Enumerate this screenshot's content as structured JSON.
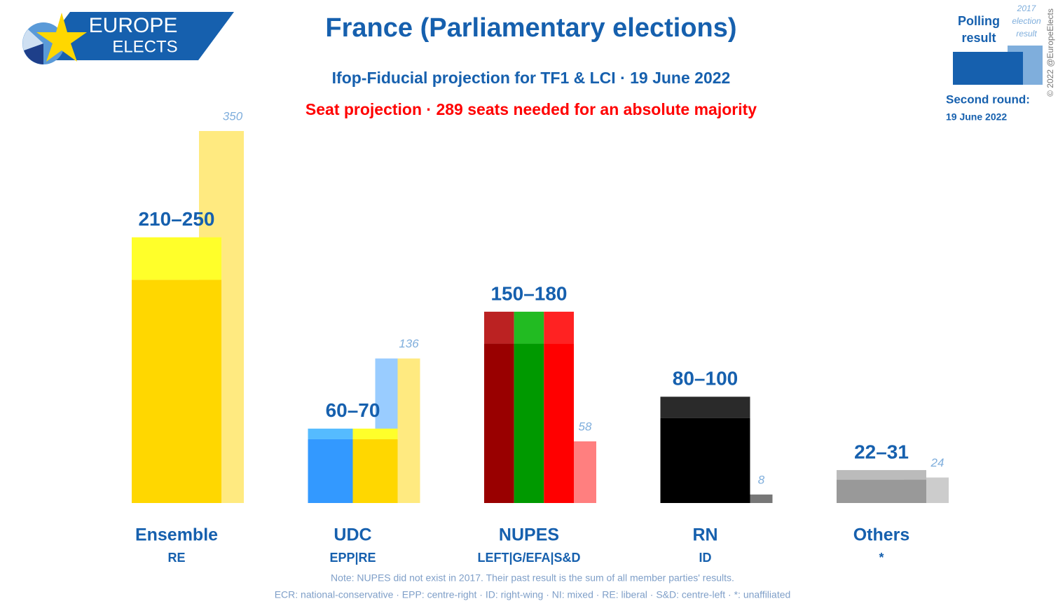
{
  "logo": {
    "line1": "EUROPE",
    "line2": "ELECTS"
  },
  "copyright": "© 2022 @EuropeElects",
  "round": {
    "label": "Second round:",
    "date": "19 June 2022"
  },
  "notes": [
    "Note: NUPES did not exist in 2017. Their past result is the sum of all member parties' results.",
    "ECR: national-conservative · EPP: centre-right · ID: right-wing · NI: mixed · RE: liberal · S&D: centre-left · *: unaffiliated"
  ],
  "chart_data": {
    "type": "range_bar",
    "title": "France (Parliamentary elections)",
    "subtitle": "Ifop-Fiducial projection for TF1 & LCI · 19 June 2022",
    "subtitle2": "Seat projection · 289 seats needed for an absolute majority",
    "categories": [
      "Ensemble",
      "UDC",
      "NUPES",
      "RN",
      "Others"
    ],
    "groups": [
      "RE",
      "EPP|RE",
      "LEFT|G/EFA|S&D",
      "ID",
      "*"
    ],
    "series": [
      {
        "name": "Polling result",
        "color": "#1660AE",
        "low": [
          210,
          60,
          150,
          80,
          22
        ],
        "high": [
          250,
          70,
          180,
          100,
          31
        ],
        "value_labels": [
          "210–250",
          "60–70",
          "150–180",
          "80–100",
          "22–31"
        ]
      },
      {
        "name": "2017 election result",
        "color": "#7FAEDC",
        "values": [
          350,
          136,
          58,
          8,
          24
        ]
      }
    ],
    "bar_colors": [
      [
        "#FFD700"
      ],
      [
        "#3399FF",
        "#FFD700"
      ],
      [
        "#990000",
        "#009900",
        "#FF0000"
      ],
      [
        "#000000"
      ],
      [
        "#999999"
      ]
    ],
    "range_colors": [
      [
        "#FFFF2A"
      ],
      [
        "#55BBFF",
        "#FFFF2A"
      ],
      [
        "#BB2222",
        "#22BB22",
        "#FF2222"
      ],
      [
        "#2A2A2A"
      ],
      [
        "#BBBBBB"
      ]
    ],
    "past_colors": [
      [
        "#FFEA80"
      ],
      [
        "#99CCFF",
        "#FFEA80"
      ],
      [
        "#88CC77",
        "#FF7F7F"
      ],
      [
        "#777777"
      ],
      [
        "#CCCCCC"
      ]
    ]
  }
}
